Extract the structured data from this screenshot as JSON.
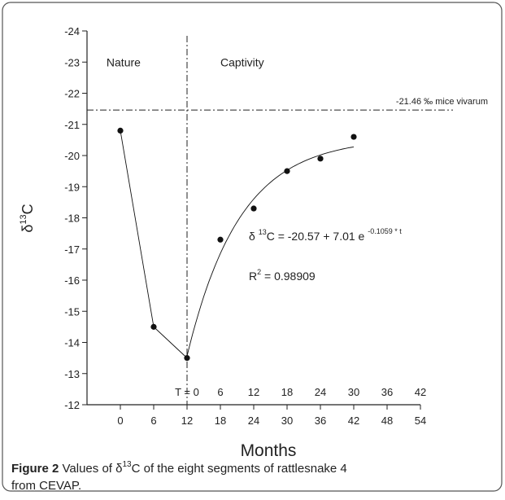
{
  "chart_data": {
    "type": "scatter",
    "x": [
      0,
      6,
      12,
      18,
      24,
      30,
      36,
      42
    ],
    "series": [
      {
        "color": "#111111",
        "values": [
          -20.8,
          -14.5,
          -13.5,
          -17.3,
          -18.3,
          -19.5,
          -19.9,
          -20.6
        ]
      }
    ],
    "xlim": [
      -6,
      54
    ],
    "xticks": [
      0,
      6,
      12,
      18,
      24,
      30,
      36,
      42,
      48,
      54
    ],
    "x2ticks": [
      {
        "value": 12,
        "label": "T = 0"
      },
      {
        "value": 18,
        "label": "6"
      },
      {
        "value": 24,
        "label": "12"
      },
      {
        "value": 30,
        "label": "18"
      },
      {
        "value": 36,
        "label": "24"
      },
      {
        "value": 42,
        "label": "30"
      },
      {
        "value": 48,
        "label": "36"
      },
      {
        "value": 54,
        "label": "42"
      }
    ],
    "ylim": [
      -12,
      -24
    ],
    "yticks": [
      -12,
      -13,
      -14,
      -15,
      -16,
      -17,
      -18,
      -19,
      -20,
      -21,
      -22,
      -23,
      -24
    ],
    "x_label": "Months",
    "y_label": {
      "base": "δ",
      "sup": "13",
      "rest": "C"
    },
    "marker_x": 12,
    "reference_line": {
      "value": -21.46,
      "label": "-21.46 ‰ mice vivarum"
    },
    "regions": [
      "Nature",
      "Captivity"
    ],
    "fit": {
      "intercept": -20.57,
      "coefficient": 7.01,
      "rate": -0.1059
    },
    "equation": {
      "base": "δ ",
      "sup1": "13",
      "mid": "C = -20.57 + 7.01 e ",
      "sup2": "-0.1059 * t"
    },
    "r_squared": {
      "base": "R",
      "sup": "2",
      "rest": " = 0.98909"
    }
  },
  "caption": {
    "label": "Figure 2",
    "text1": " Values of δ",
    "sup": "13",
    "text2": "C of the eight segments of rattlesnake 4 from CEVAP."
  }
}
